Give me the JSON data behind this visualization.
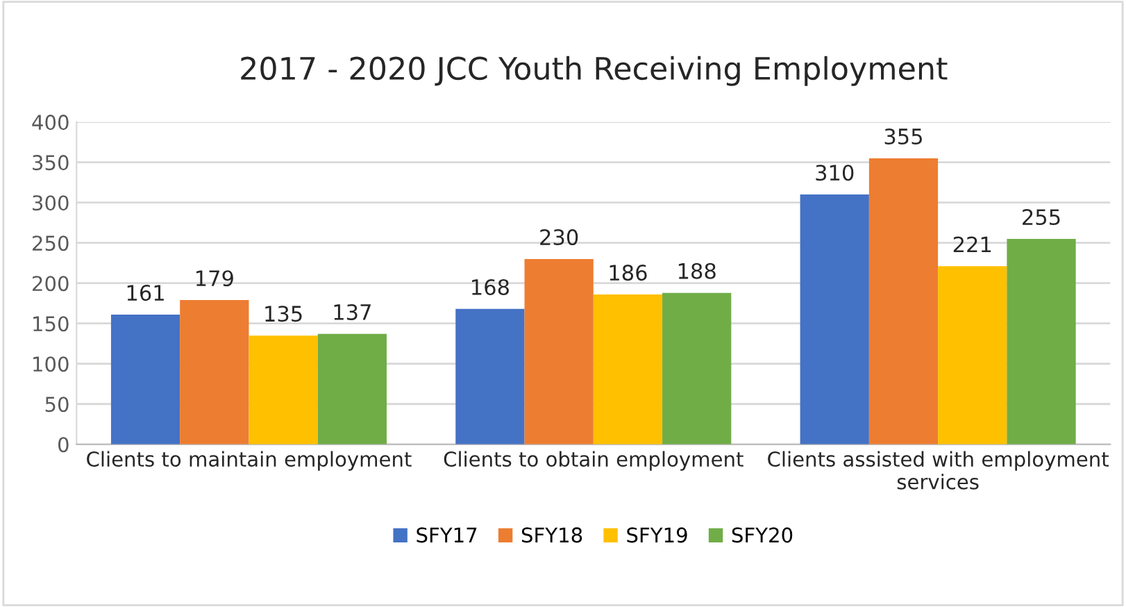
{
  "chart_data": {
    "type": "bar",
    "title": "2017 - 2020 JCC Youth Receiving Employment",
    "categories": [
      "Clients to maintain employment",
      "Clients to obtain employment",
      "Clients assisted with employment\nservices"
    ],
    "series": [
      {
        "name": "SFY17",
        "color": "#4472c4",
        "values": [
          161,
          168,
          310
        ]
      },
      {
        "name": "SFY18",
        "color": "#ed7d31",
        "values": [
          179,
          230,
          355
        ]
      },
      {
        "name": "SFY19",
        "color": "#ffc000",
        "values": [
          135,
          186,
          221
        ]
      },
      {
        "name": "SFY20",
        "color": "#70ad47",
        "values": [
          137,
          188,
          255
        ]
      }
    ],
    "ylim": [
      0,
      400
    ],
    "yticks": [
      0,
      50,
      100,
      150,
      200,
      250,
      300,
      350,
      400
    ],
    "grid": "y",
    "legend": "bottom",
    "data_labels": true
  }
}
